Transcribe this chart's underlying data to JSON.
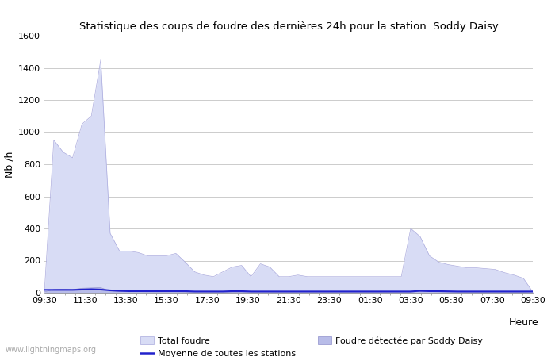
{
  "title": "Statistique des coups de foudre des dernières 24h pour la station: Soddy Daisy",
  "xlabel": "Heure",
  "ylabel": "Nb /h",
  "ylim": [
    0,
    1600
  ],
  "yticks": [
    0,
    200,
    400,
    600,
    800,
    1000,
    1200,
    1400,
    1600
  ],
  "x_labels": [
    "09:30",
    "11:30",
    "13:30",
    "15:30",
    "17:30",
    "19:30",
    "21:30",
    "23:30",
    "01:30",
    "03:30",
    "05:30",
    "07:30",
    "09:30"
  ],
  "background_color": "#ffffff",
  "grid_color": "#cccccc",
  "fill_total_color": "#d8dcf5",
  "fill_station_color": "#b8bce8",
  "line_moyenne_color": "#2222cc",
  "watermark": "www.lightningmaps.org",
  "legend": {
    "total_foudre": "Total foudre",
    "moyenne": "Moyenne de toutes les stations",
    "station": "Foudre détectée par Soddy Daisy"
  },
  "total_foudre": [
    5,
    950,
    875,
    840,
    1050,
    1100,
    1450,
    370,
    260,
    260,
    250,
    230,
    230,
    230,
    245,
    190,
    130,
    110,
    100,
    130,
    160,
    170,
    100,
    180,
    160,
    100,
    100,
    110,
    100,
    100,
    100,
    100,
    100,
    100,
    100,
    100,
    100,
    100,
    100,
    400,
    350,
    230,
    190,
    175,
    165,
    155,
    155,
    150,
    145,
    125,
    110,
    90,
    5
  ],
  "station_foudre": [
    5,
    20,
    22,
    20,
    28,
    30,
    32,
    10,
    7,
    6,
    6,
    5,
    5,
    5,
    5,
    4,
    3,
    3,
    3,
    3,
    3,
    3,
    3,
    3,
    3,
    3,
    3,
    3,
    3,
    3,
    3,
    3,
    3,
    3,
    3,
    3,
    3,
    3,
    3,
    3,
    8,
    7,
    5,
    4,
    4,
    3,
    3,
    3,
    3,
    3,
    3,
    3,
    5
  ],
  "moyenne_values": [
    18,
    18,
    18,
    18,
    20,
    22,
    20,
    15,
    12,
    10,
    10,
    10,
    10,
    10,
    10,
    10,
    8,
    8,
    8,
    8,
    10,
    10,
    8,
    8,
    8,
    8,
    8,
    8,
    8,
    8,
    8,
    8,
    8,
    8,
    8,
    8,
    8,
    8,
    8,
    8,
    12,
    10,
    10,
    9,
    8,
    8,
    8,
    8,
    8,
    8,
    8,
    8,
    8
  ]
}
